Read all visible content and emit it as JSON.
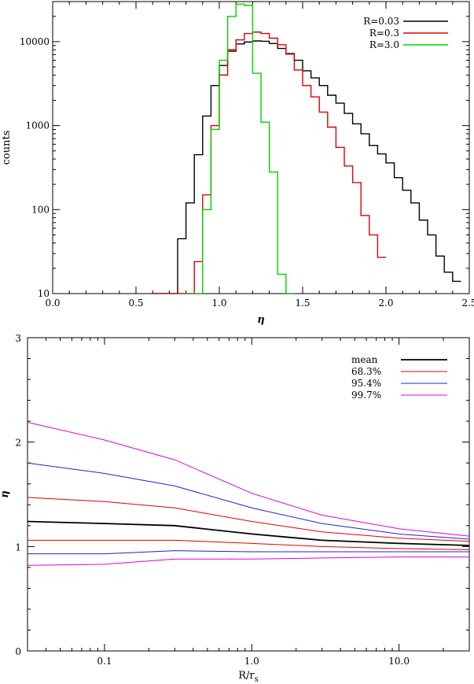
{
  "chart_data": [
    {
      "type": "line",
      "subtype": "histogram-step",
      "title": "",
      "xlabel": "η",
      "ylabel": "counts",
      "xlim": [
        0.0,
        2.5
      ],
      "ylim": [
        10,
        30000
      ],
      "yscale": "log",
      "grid": false,
      "legend_position": "top-right",
      "x_ticks": [
        "0.0",
        "0.5",
        "1.0",
        "1.5",
        "2.0",
        "2.5"
      ],
      "y_ticks": [
        "10",
        "100",
        "1000",
        "10000"
      ],
      "bin_width": 0.05,
      "series": [
        {
          "name": "R=0.03",
          "color": "#000000",
          "x": [
            0.6,
            0.65,
            0.7,
            0.75,
            0.8,
            0.85,
            0.9,
            0.95,
            1.0,
            1.05,
            1.1,
            1.15,
            1.2,
            1.25,
            1.3,
            1.35,
            1.4,
            1.45,
            1.5,
            1.55,
            1.6,
            1.65,
            1.7,
            1.75,
            1.8,
            1.85,
            1.9,
            1.95,
            2.0,
            2.05,
            2.1,
            2.15,
            2.2,
            2.25,
            2.3,
            2.35,
            2.4
          ],
          "y": [
            10,
            10,
            10,
            45,
            120,
            450,
            1300,
            3000,
            5200,
            7700,
            9400,
            9900,
            10200,
            10100,
            9500,
            8300,
            7200,
            6000,
            4500,
            3700,
            3000,
            2300,
            1850,
            1400,
            1050,
            800,
            580,
            460,
            360,
            240,
            170,
            120,
            75,
            50,
            28,
            18,
            14
          ]
        },
        {
          "name": "R=0.3",
          "color": "#e00000",
          "x": [
            0.6,
            0.65,
            0.7,
            0.75,
            0.8,
            0.85,
            0.9,
            0.95,
            1.0,
            1.05,
            1.1,
            1.15,
            1.2,
            1.25,
            1.3,
            1.35,
            1.4,
            1.45,
            1.5,
            1.55,
            1.6,
            1.65,
            1.7,
            1.75,
            1.8,
            1.85,
            1.9,
            1.95
          ],
          "y": [
            10,
            10,
            10,
            10,
            10,
            24,
            150,
            1000,
            4000,
            8000,
            10500,
            12500,
            13000,
            12500,
            11000,
            9200,
            7100,
            4600,
            3000,
            2200,
            1450,
            960,
            550,
            330,
            210,
            85,
            50,
            27
          ]
        },
        {
          "name": "R=3.0",
          "color": "#00d000",
          "x": [
            0.8,
            0.85,
            0.9,
            0.95,
            1.0,
            1.05,
            1.1,
            1.15,
            1.2,
            1.25,
            1.3,
            1.35,
            1.4
          ],
          "y": [
            10,
            10,
            100,
            900,
            6000,
            20000,
            28000,
            27000,
            4200,
            1100,
            280,
            17,
            10
          ]
        }
      ]
    },
    {
      "type": "line",
      "title": "",
      "xlabel": "R/r_s",
      "ylabel": "η",
      "xscale": "log",
      "xlim": [
        0.03,
        30
      ],
      "ylim": [
        0,
        3
      ],
      "grid": false,
      "legend_position": "top-right",
      "x_ticks": [
        "0.1",
        "1.0",
        "10.0"
      ],
      "y_ticks": [
        "0",
        "1",
        "2",
        "3"
      ],
      "x": [
        0.03,
        0.1,
        0.3,
        1.0,
        3.0,
        10.0,
        30.0
      ],
      "series": [
        {
          "name": "mean",
          "color": "#000000",
          "values": [
            1.24,
            1.22,
            1.2,
            1.12,
            1.06,
            1.03,
            1.01
          ]
        },
        {
          "name": "68.3%",
          "color": "#e00000",
          "values": [
            1.47,
            1.43,
            1.37,
            1.24,
            1.14,
            1.08,
            1.05
          ]
        },
        {
          "name": "68.3%",
          "color": "#e00000",
          "values": [
            1.06,
            1.06,
            1.06,
            1.03,
            1.0,
            0.98,
            0.97
          ]
        },
        {
          "name": "95.4%",
          "color": "#2020e0",
          "values": [
            1.8,
            1.7,
            1.58,
            1.37,
            1.22,
            1.12,
            1.07
          ]
        },
        {
          "name": "95.4%",
          "color": "#2020e0",
          "values": [
            0.93,
            0.93,
            0.96,
            0.95,
            0.95,
            0.95,
            0.95
          ]
        },
        {
          "name": "99.7%",
          "color": "#e000e0",
          "values": [
            2.19,
            2.02,
            1.83,
            1.51,
            1.3,
            1.17,
            1.1
          ]
        },
        {
          "name": "99.7%",
          "color": "#e000e0",
          "values": [
            0.82,
            0.83,
            0.88,
            0.88,
            0.89,
            0.9,
            0.9
          ]
        }
      ],
      "legend": [
        {
          "label": "mean",
          "color": "#000000"
        },
        {
          "label": "68.3%",
          "color": "#e00000"
        },
        {
          "label": "95.4%",
          "color": "#2020e0"
        },
        {
          "label": "99.7%",
          "color": "#e000e0"
        }
      ]
    }
  ]
}
